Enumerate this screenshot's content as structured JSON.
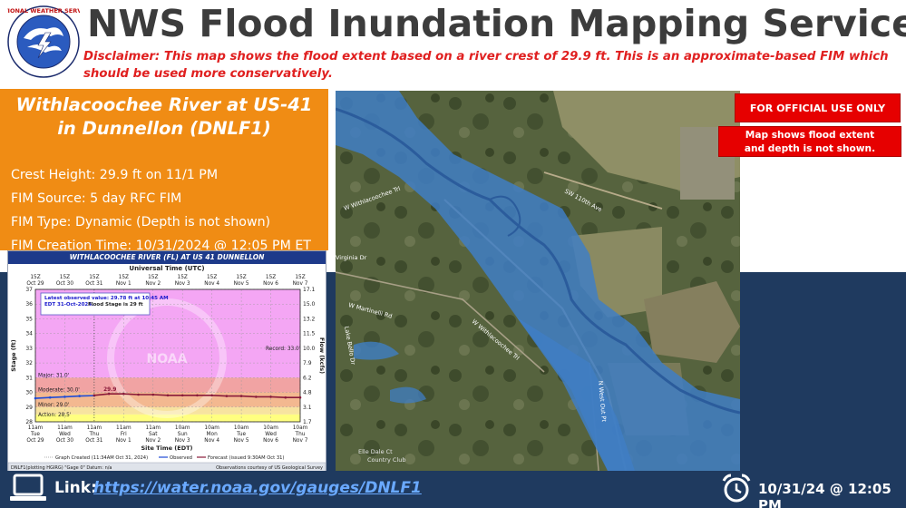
{
  "header": {
    "title": "NWS Flood Inundation Mapping Services",
    "disclaimer": "Disclaimer: This map shows the flood extent based on a river crest of 29.9 ft. This is an approximate-based FIM which should be used more conservatively.",
    "logo_text": "NATIONAL WEATHER SERVICE"
  },
  "panel": {
    "river_line1": "Withlacoochee River at US-41",
    "river_line2": "in Dunnellon (DNLF1)",
    "crest": "Crest Height: 29.9 ft on 11/1 PM",
    "source": "FIM Source: 5 day RFC FIM",
    "type": "FIM Type: Dynamic (Depth is not shown)",
    "created": "FIM Creation Time: 10/31/2024 @ 12:05 PM ET"
  },
  "hydrograph": {
    "title": "WITHLACOOCHEE RIVER (FL) AT US 41 DUNNELLON",
    "top_axis_label": "Universal Time (UTC)",
    "top_ticks_time": [
      "15Z",
      "15Z",
      "15Z",
      "15Z",
      "15Z",
      "15Z",
      "15Z",
      "15Z",
      "15Z",
      "15Z"
    ],
    "top_ticks_date": [
      "Oct 29",
      "Oct 30",
      "Oct 31",
      "Nov 1",
      "Nov 2",
      "Nov 3",
      "Nov 4",
      "Nov 5",
      "Nov 6",
      "Nov 7"
    ],
    "left_ticks": [
      "37",
      "36",
      "35",
      "34",
      "33",
      "32",
      "31",
      "30",
      "29",
      "28"
    ],
    "right_ticks": [
      "17.1",
      "15.0",
      "13.2",
      "11.5",
      "10.0",
      "7.9",
      "6.2",
      "4.8",
      "3.1",
      "1.7"
    ],
    "ylabel_left": "Stage (ft)",
    "ylabel_right": "Flow (kcfs)",
    "latest_line1": "Latest observed value: 29.78 ft at 10:45 AM",
    "latest_line2": "EDT 31-Oct-2024.",
    "latest_line3": "Flood Stage is 29 ft",
    "record": "Record: 33.0'",
    "major": "Major: 31.0'",
    "moderate": "Moderate: 30.0'",
    "minor": "Minor: 29.0'",
    "action": "Action: 28.5'",
    "crest_label": "29.9",
    "bottom_ticks_time": [
      "11am",
      "11am",
      "11am",
      "11am",
      "11am",
      "10am",
      "10am",
      "10am",
      "10am",
      "10am"
    ],
    "bottom_ticks_day": [
      "Tue",
      "Wed",
      "Thu",
      "Fri",
      "Sat",
      "Sun",
      "Mon",
      "Tue",
      "Wed",
      "Thu"
    ],
    "bottom_ticks_date": [
      "Oct 29",
      "Oct 30",
      "Oct 31",
      "Nov 1",
      "Nov 2",
      "Nov 3",
      "Nov 4",
      "Nov 5",
      "Nov 6",
      "Nov 7"
    ],
    "bottom_axis_label": "Site Time (EDT)",
    "legend_graph": "Graph Created (11:34AM Oct 31, 2024)",
    "legend_observed": "Observed",
    "legend_forecast": "Forecast (issued 9:30AM Oct 31)",
    "footer_left": "DNLF1(plotting HGIRG) \"Gage 0\" Datum: n/a",
    "footer_right": "Observations courtesy of US Geological Survey",
    "watermark": "NOAA",
    "chart_data": {
      "type": "line",
      "title": "WITHLACOOCHEE RIVER (FL) AT US 41 DUNNELLON",
      "xlabel": "Site Time (EDT)",
      "ylabel": "Stage (ft)",
      "ylim": [
        28,
        37
      ],
      "x": [
        "Oct 29",
        "Oct 30",
        "Oct 31",
        "Nov 1",
        "Nov 2",
        "Nov 3",
        "Nov 4",
        "Nov 5",
        "Nov 6",
        "Nov 7"
      ],
      "series": [
        {
          "name": "Observed",
          "x": [
            0,
            0.5,
            1.0,
            1.5,
            2.0
          ],
          "values": [
            29.6,
            29.65,
            29.7,
            29.75,
            29.78
          ]
        },
        {
          "name": "Forecast",
          "x": [
            2.0,
            2.5,
            3.0,
            3.5,
            4.0,
            4.5,
            5.0,
            5.5,
            6.0,
            6.5,
            7.0,
            7.5,
            8.0,
            8.5,
            9.0
          ],
          "values": [
            29.8,
            29.9,
            29.9,
            29.85,
            29.85,
            29.8,
            29.8,
            29.8,
            29.8,
            29.75,
            29.75,
            29.7,
            29.7,
            29.65,
            29.65
          ]
        }
      ],
      "thresholds": {
        "record": 33.0,
        "major": 31.0,
        "moderate": 30.0,
        "minor": 29.0,
        "action": 28.5
      },
      "colors": {
        "major": "#f1a3a3",
        "moderate": "#f3b890",
        "minor": "#f7e3a0",
        "action": "#ffff80",
        "normal": "#f4a6f4",
        "observed": "#1f4bd6",
        "forecast": "#8a1a3a"
      }
    }
  },
  "map": {
    "official": "FOR OFFICIAL USE ONLY",
    "depth_line1": "Map shows flood extent",
    "depth_line2": "and depth is not shown.",
    "labels": [
      "SW 110th Ave",
      "W Withlacoochee Trl",
      "Virginia Dr",
      "W Martinelli Rd",
      "W Withlacoochee Trl",
      "Lake Bello Dr",
      "N West Out Pt",
      "Elle Dale Ct",
      "Country Club"
    ]
  },
  "footer": {
    "link_label": "Link:",
    "link_url": "https://water.noaa.gov/gauges/DNLF1",
    "datetime": "10/31/24 @ 12:05 PM"
  }
}
